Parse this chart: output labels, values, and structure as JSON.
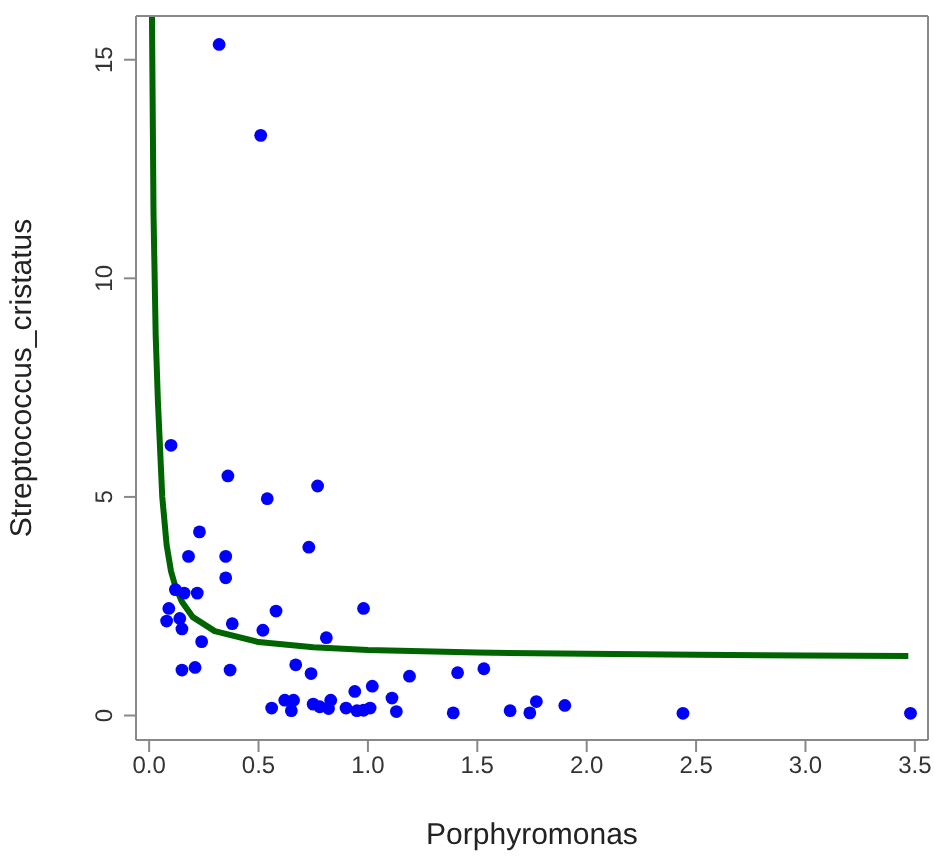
{
  "chart_data": {
    "type": "scatter",
    "xlabel": "Porphyromonas",
    "ylabel": "Streptococcus_cristatus",
    "xlim": [
      -0.06,
      3.56
    ],
    "ylim": [
      -0.56,
      16
    ],
    "xticks": [
      {
        "value": 0,
        "label": "0.0"
      },
      {
        "value": 0.5,
        "label": "0.5"
      },
      {
        "value": 1,
        "label": "1.0"
      },
      {
        "value": 1.5,
        "label": "1.5"
      },
      {
        "value": 2,
        "label": "2.0"
      },
      {
        "value": 2.5,
        "label": "2.5"
      },
      {
        "value": 3,
        "label": "3.0"
      },
      {
        "value": 3.5,
        "label": "3.5"
      }
    ],
    "yticks": [
      0,
      5,
      10,
      15
    ],
    "grid": false,
    "legend": false,
    "marker": "circle",
    "series": [
      {
        "color": "#0000ff",
        "x": [
          0.32,
          0.51,
          0.1,
          0.36,
          0.77,
          0.54,
          0.23,
          0.73,
          0.18,
          0.35,
          0.35,
          0.12,
          0.16,
          0.22,
          0.09,
          0.98,
          0.58,
          0.14,
          0.08,
          0.38,
          0.15,
          0.52,
          0.81,
          0.24,
          0.67,
          0.21,
          0.15,
          0.37,
          0.74,
          1.19,
          1.41,
          1.53,
          0.94,
          1.02,
          1.11,
          0.62,
          0.66,
          0.56,
          0.65,
          0.75,
          0.78,
          0.83,
          0.82,
          0.9,
          0.95,
          0.98,
          1.01,
          1.13,
          1.39,
          1.65,
          1.74,
          1.77,
          1.9,
          2.44,
          3.48
        ],
        "values": [
          15.35,
          13.27,
          6.18,
          5.48,
          5.25,
          4.96,
          4.2,
          3.85,
          3.64,
          3.64,
          3.15,
          2.88,
          2.8,
          2.8,
          2.45,
          2.45,
          2.39,
          2.22,
          2.16,
          2.1,
          1.98,
          1.95,
          1.78,
          1.69,
          1.16,
          1.1,
          1.04,
          1.04,
          0.96,
          0.9,
          0.98,
          1.07,
          0.55,
          0.67,
          0.4,
          0.35,
          0.35,
          0.17,
          0.11,
          0.26,
          0.2,
          0.35,
          0.16,
          0.17,
          0.11,
          0.12,
          0.17,
          0.09,
          0.06,
          0.11,
          0.06,
          0.32,
          0.23,
          0.05,
          0.05
        ]
      },
      {
        "type": "line",
        "color": "#006400",
        "line_style": "solid",
        "marker": "none",
        "x": [
          0.013,
          0.02,
          0.03,
          0.04,
          0.06,
          0.08,
          0.1,
          0.12,
          0.15,
          0.2,
          0.3,
          0.5,
          0.75,
          1,
          1.5,
          2,
          2.5,
          3,
          3.47
        ],
        "values": [
          16,
          11.5,
          8.7,
          7.2,
          5.0,
          3.9,
          3.3,
          2.95,
          2.6,
          2.25,
          1.93,
          1.68,
          1.56,
          1.5,
          1.44,
          1.41,
          1.39,
          1.37,
          1.36
        ]
      }
    ]
  }
}
